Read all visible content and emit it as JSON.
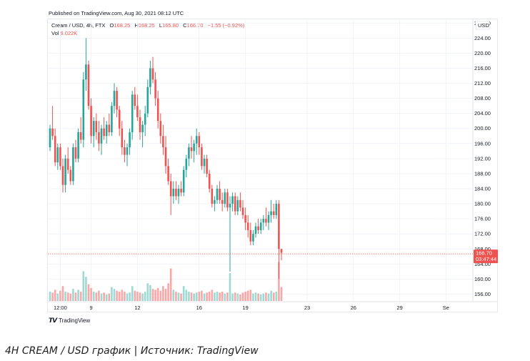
{
  "published": "Published on TradingView.com, Aug 30, 2021 08:12 UTC",
  "legend": {
    "symbol": "Cream / USD, 4h, FTX",
    "open_label": "O",
    "open": "168.25",
    "high_label": "H",
    "high": "168.25",
    "low_label": "L",
    "low": "165.80",
    "close_label": "C",
    "close": "166.70",
    "change": "−1.55 (−0.92%)",
    "vol_label": "Vol",
    "vol": "9.022K"
  },
  "currency_label": "USD",
  "price_tag": {
    "price": "166.70",
    "countdown": "03:47:44"
  },
  "branding": "TradingView",
  "caption": "4H CREAM / USD график | Источник: TradingView",
  "colors": {
    "up": "#26a69a",
    "down": "#ef5350",
    "up_volume": "#9fd9d3",
    "down_volume": "#f8a9a7",
    "grid": "#f0f3fa"
  },
  "chart_data": {
    "type": "candlestick",
    "title": "Cream / USD, 4h, FTX",
    "y_axis_labels": [
      "156.00",
      "160.00",
      "164.00",
      "168.00",
      "172.00",
      "176.00",
      "180.00",
      "184.00",
      "188.00",
      "192.00",
      "196.00",
      "200.00",
      "204.00",
      "208.00",
      "212.00",
      "216.00",
      "220.00",
      "224.00",
      "228.00"
    ],
    "x_axis_labels": [
      {
        "label": "12:00",
        "index": 4
      },
      {
        "label": "9",
        "index": 16
      },
      {
        "label": "12",
        "index": 34
      },
      {
        "label": "16",
        "index": 58
      },
      {
        "label": "19",
        "index": 76
      },
      {
        "label": "23",
        "index": 100
      },
      {
        "label": "26",
        "index": 118
      },
      {
        "label": "29",
        "index": 136
      },
      {
        "label": "Se",
        "index": 154
      }
    ],
    "ylim": [
      154,
      229
    ],
    "grid": true,
    "candles": [
      [
        195,
        201,
        194,
        200,
        1.0
      ],
      [
        200,
        206,
        197,
        198,
        0.9
      ],
      [
        198,
        200,
        190,
        191,
        1.2
      ],
      [
        191,
        196,
        189,
        195,
        0.8
      ],
      [
        195,
        196,
        189,
        190,
        1.1
      ],
      [
        190,
        192,
        183,
        185,
        1.6
      ],
      [
        185,
        193,
        183,
        192,
        1.0
      ],
      [
        192,
        195,
        188,
        189,
        0.9
      ],
      [
        189,
        190,
        185,
        186,
        0.8
      ],
      [
        186,
        196,
        185,
        195,
        1.3
      ],
      [
        195,
        197,
        191,
        192,
        0.9
      ],
      [
        192,
        200,
        191,
        199,
        1.2
      ],
      [
        199,
        203,
        196,
        197,
        1.0
      ],
      [
        197,
        215,
        195,
        213,
        3.2
      ],
      [
        213,
        224,
        210,
        217,
        2.6
      ],
      [
        217,
        218,
        205,
        206,
        1.8
      ],
      [
        206,
        208,
        196,
        198,
        1.4
      ],
      [
        198,
        203,
        195,
        202,
        1.0
      ],
      [
        202,
        204,
        197,
        199,
        0.9
      ],
      [
        199,
        202,
        194,
        196,
        1.1
      ],
      [
        196,
        201,
        193,
        200,
        0.8
      ],
      [
        200,
        203,
        197,
        198,
        0.9
      ],
      [
        198,
        202,
        196,
        201,
        0.7
      ],
      [
        201,
        204,
        198,
        199,
        0.8
      ],
      [
        199,
        207,
        198,
        206,
        1.5
      ],
      [
        206,
        212,
        204,
        210,
        1.3
      ],
      [
        210,
        211,
        203,
        205,
        1.1
      ],
      [
        205,
        206,
        198,
        200,
        1.0
      ],
      [
        200,
        202,
        193,
        195,
        1.2
      ],
      [
        195,
        197,
        191,
        193,
        1.0
      ],
      [
        193,
        196,
        190,
        195,
        0.8
      ],
      [
        195,
        200,
        193,
        199,
        0.9
      ],
      [
        199,
        210,
        197,
        209,
        1.6
      ],
      [
        209,
        211,
        205,
        206,
        1.1
      ],
      [
        206,
        209,
        202,
        203,
        1.0
      ],
      [
        203,
        205,
        197,
        199,
        0.9
      ],
      [
        199,
        202,
        195,
        201,
        0.8
      ],
      [
        201,
        206,
        198,
        204,
        1.0
      ],
      [
        204,
        213,
        203,
        211,
        1.9
      ],
      [
        211,
        218,
        209,
        216,
        1.7
      ],
      [
        216,
        219,
        212,
        213,
        1.3
      ],
      [
        213,
        215,
        206,
        208,
        1.2
      ],
      [
        208,
        210,
        200,
        202,
        1.4
      ],
      [
        202,
        204,
        196,
        198,
        1.1
      ],
      [
        198,
        201,
        193,
        195,
        1.6
      ],
      [
        195,
        198,
        188,
        190,
        1.3
      ],
      [
        190,
        192,
        185,
        186,
        1.9
      ],
      [
        186,
        188,
        177,
        182,
        3.5
      ],
      [
        182,
        186,
        180,
        184,
        1.2
      ],
      [
        184,
        186,
        181,
        182,
        1.0
      ],
      [
        182,
        185,
        180,
        184,
        0.9
      ],
      [
        184,
        186,
        182,
        183,
        0.8
      ],
      [
        183,
        190,
        182,
        189,
        1.6
      ],
      [
        189,
        193,
        187,
        192,
        1.2
      ],
      [
        192,
        196,
        190,
        195,
        1.0
      ],
      [
        195,
        198,
        192,
        194,
        0.9
      ],
      [
        194,
        197,
        191,
        196,
        0.8
      ],
      [
        196,
        200,
        193,
        198,
        0.9
      ],
      [
        198,
        199,
        193,
        195,
        1.0
      ],
      [
        195,
        196,
        189,
        190,
        1.1
      ],
      [
        190,
        193,
        188,
        192,
        0.8
      ],
      [
        192,
        193,
        187,
        188,
        0.9
      ],
      [
        188,
        189,
        183,
        184,
        1.0
      ],
      [
        184,
        185,
        179,
        180,
        1.2
      ],
      [
        180,
        182,
        178,
        181,
        0.9
      ],
      [
        181,
        185,
        180,
        184,
        1.0
      ],
      [
        184,
        186,
        180,
        181,
        0.9
      ],
      [
        181,
        183,
        178,
        180,
        1.0
      ],
      [
        180,
        184,
        179,
        183,
        0.8
      ],
      [
        183,
        184,
        178,
        179,
        0.9
      ],
      [
        179,
        182,
        162,
        180,
        3.0
      ],
      [
        180,
        183,
        178,
        182,
        0.8
      ],
      [
        182,
        183,
        177,
        178,
        0.9
      ],
      [
        178,
        182,
        177,
        181,
        0.8
      ],
      [
        181,
        183,
        178,
        179,
        0.7
      ],
      [
        179,
        181,
        176,
        177,
        0.9
      ],
      [
        177,
        179,
        173,
        175,
        1.0
      ],
      [
        175,
        177,
        171,
        173,
        1.1
      ],
      [
        173,
        175,
        169,
        170,
        1.2
      ],
      [
        170,
        173,
        169,
        172,
        0.8
      ],
      [
        172,
        175,
        171,
        174,
        0.9
      ],
      [
        174,
        176,
        172,
        173,
        0.8
      ],
      [
        173,
        176,
        172,
        175,
        0.7
      ],
      [
        175,
        177,
        173,
        176,
        0.8
      ],
      [
        176,
        179,
        174,
        175,
        0.9
      ],
      [
        175,
        178,
        173,
        177,
        0.8
      ],
      [
        177,
        181,
        175,
        178,
        1.1
      ],
      [
        178,
        180,
        176,
        177,
        0.9
      ],
      [
        177,
        181,
        176,
        180,
        1.0
      ],
      [
        180,
        181,
        160,
        168,
        4.2
      ],
      [
        168,
        168,
        165,
        167,
        1.5
      ]
    ]
  }
}
